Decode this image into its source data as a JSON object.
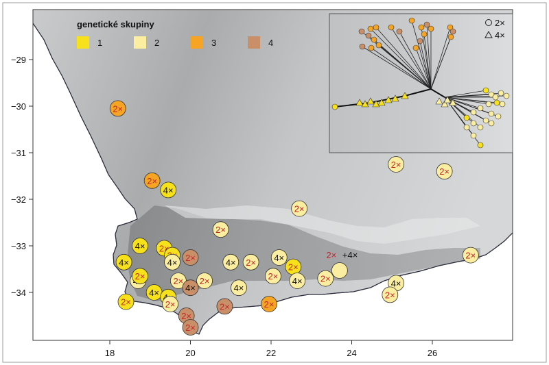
{
  "legend": {
    "title": "genetické skupiny",
    "items": [
      {
        "label": "1",
        "color": "#f7e11a"
      },
      {
        "label": "2",
        "color": "#fbeea0"
      },
      {
        "label": "3",
        "color": "#f5a523"
      },
      {
        "label": "4",
        "color": "#c98f68"
      }
    ]
  },
  "inset_legend": {
    "items": [
      {
        "symbol": "circle",
        "label": "2×"
      },
      {
        "symbol": "triangle",
        "label": "4×"
      }
    ]
  },
  "axes": {
    "x_ticks": [
      "18",
      "20",
      "22",
      "24",
      "26"
    ],
    "y_ticks": [
      "−29",
      "−30",
      "−31",
      "−32",
      "−33",
      "−34"
    ]
  },
  "points": [
    {
      "label": "2×",
      "group": 3,
      "lon": 18.2,
      "lat": -30.05
    },
    {
      "label": "2×",
      "group": 3,
      "lon": 19.05,
      "lat": -31.6
    },
    {
      "label": "4×",
      "group": 1,
      "lon": 19.45,
      "lat": -31.8
    },
    {
      "label": "2×",
      "group": 2,
      "lon": 25.1,
      "lat": -31.25
    },
    {
      "label": "2×",
      "group": 2,
      "lon": 26.3,
      "lat": -31.4
    },
    {
      "label": "2×",
      "group": 2,
      "lon": 22.7,
      "lat": -32.2
    },
    {
      "label": "2×",
      "group": 2,
      "lon": 20.75,
      "lat": -32.65
    },
    {
      "label": "4×",
      "group": 1,
      "lon": 18.75,
      "lat": -33.0
    },
    {
      "label": "2×",
      "group": 1,
      "lon": 19.35,
      "lat": -33.05
    },
    {
      "label": "2×",
      "group": 1,
      "lon": 19.55,
      "lat": -33.2
    },
    {
      "label": "4×",
      "group": 2,
      "lon": 19.55,
      "lat": -33.35
    },
    {
      "label": "2×",
      "group": 4,
      "lon": 20.0,
      "lat": -33.25
    },
    {
      "label": "4×",
      "group": 1,
      "lon": 18.35,
      "lat": -33.35
    },
    {
      "label": "2×",
      "group": 2,
      "lon": 26.95,
      "lat": -33.2
    },
    {
      "label": "4×",
      "group": 2,
      "lon": 21.0,
      "lat": -33.35
    },
    {
      "label": "2×",
      "group": 2,
      "lon": 21.5,
      "lat": -33.35
    },
    {
      "label": "4×",
      "group": 2,
      "lon": 22.2,
      "lat": -33.25
    },
    {
      "label": "2×",
      "group": 1,
      "lon": 22.55,
      "lat": -33.45
    },
    {
      "label": "4×",
      "group": 2,
      "lon": 18.7,
      "lat": -33.75
    },
    {
      "label": "2×",
      "group": 2,
      "lon": 19.7,
      "lat": -33.75
    },
    {
      "label": "2×",
      "group": 2,
      "lon": 20.35,
      "lat": -33.75
    },
    {
      "label": "2×",
      "group": 2,
      "lon": 22.05,
      "lat": -33.65
    },
    {
      "label": "4×",
      "group": 2,
      "lon": 22.65,
      "lat": -33.75
    },
    {
      "label": "2×",
      "group": 2,
      "lon": 23.35,
      "lat": -33.7
    },
    {
      "label": "4×",
      "group": 2,
      "lon": 25.1,
      "lat": -33.8
    },
    {
      "label": "2×",
      "group": 1,
      "lon": 18.75,
      "lat": -33.65
    },
    {
      "label": "4×",
      "group": 1,
      "lon": 19.1,
      "lat": -34.0
    },
    {
      "label": "4×",
      "group": 4,
      "lon": 20.0,
      "lat": -33.9
    },
    {
      "label": "4×",
      "group": 2,
      "lon": 21.2,
      "lat": -33.9
    },
    {
      "label": "2×",
      "group": 2,
      "lon": 24.95,
      "lat": -34.05
    },
    {
      "label": "2×",
      "group": 1,
      "lon": 18.4,
      "lat": -34.2
    },
    {
      "label": "4×",
      "group": 1,
      "lon": 19.45,
      "lat": -34.1
    },
    {
      "label": "2×",
      "group": 2,
      "lon": 19.5,
      "lat": -34.25
    },
    {
      "label": "2×",
      "group": 4,
      "lon": 20.85,
      "lat": -34.3
    },
    {
      "label": "2×",
      "group": 3,
      "lon": 21.95,
      "lat": -34.25
    },
    {
      "label": "2×",
      "group": 4,
      "lon": 19.9,
      "lat": -34.5
    },
    {
      "label": "2×",
      "group": 4,
      "lon": 20.0,
      "lat": -34.75
    }
  ],
  "special_point": {
    "lon": 23.7,
    "lat": -33.5,
    "group": 2,
    "label_red": "2×",
    "label_black": "+4×"
  }
}
